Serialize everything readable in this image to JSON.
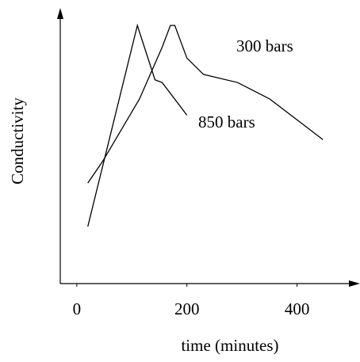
{
  "chart_data": {
    "type": "line",
    "x_label": "time (minutes)",
    "y_label": "Conductivity",
    "xlim": [
      -30,
      510
    ],
    "xticks": [
      0,
      200,
      400
    ],
    "ylim": [
      0,
      100
    ],
    "series": [
      {
        "name": "850 bars",
        "color": "#000000",
        "x": [
          20,
          110,
          142,
          155,
          200
        ],
        "values": [
          21,
          95,
          75,
          74,
          62
        ]
      },
      {
        "name": "300 bars",
        "color": "#000000",
        "x": [
          20,
          47,
          114,
          155,
          170,
          178,
          200,
          230,
          292,
          350,
          447
        ],
        "values": [
          37,
          45,
          68,
          87,
          95,
          95,
          83,
          77,
          74,
          68,
          53
        ]
      }
    ]
  }
}
